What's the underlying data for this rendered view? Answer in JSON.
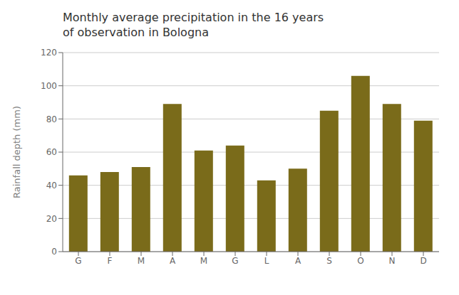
{
  "chart_data": {
    "type": "bar",
    "title": "Monthly average precipitation in the 16 years\nof observation in Bologna",
    "ylabel": "Rainfall depth (mm)",
    "categories": [
      "G",
      "F",
      "M",
      "A",
      "M",
      "G",
      "L",
      "A",
      "S",
      "O",
      "N",
      "D"
    ],
    "values": [
      46,
      48,
      51,
      89,
      61,
      64,
      43,
      50,
      85,
      106,
      89,
      79
    ],
    "color": "#7a6b1a",
    "ylim": [
      0,
      120
    ],
    "yticks": [
      0,
      20,
      40,
      60,
      80,
      100,
      120
    ],
    "grid": true
  }
}
